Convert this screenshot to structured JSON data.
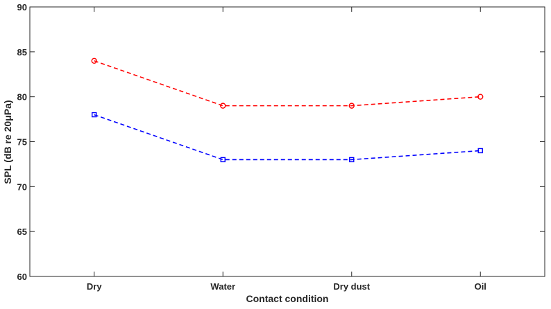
{
  "chart_data": {
    "type": "line",
    "title": "",
    "xlabel": "Contact condition",
    "ylabel": "SPL (dB re 20μPa)",
    "categories": [
      "Dry",
      "Water",
      "Dry dust",
      "Oil"
    ],
    "ylim": [
      60,
      90
    ],
    "yticks": [
      60,
      65,
      70,
      75,
      80,
      85,
      90
    ],
    "grid": false,
    "series": [
      {
        "name": "red-circles",
        "color": "#ff0000",
        "marker": "circle",
        "linestyle": "dashed",
        "values": [
          84,
          79,
          79,
          80
        ]
      },
      {
        "name": "blue-squares",
        "color": "#0000ff",
        "marker": "square",
        "linestyle": "dashed",
        "values": [
          78,
          73,
          73,
          74
        ]
      }
    ]
  }
}
